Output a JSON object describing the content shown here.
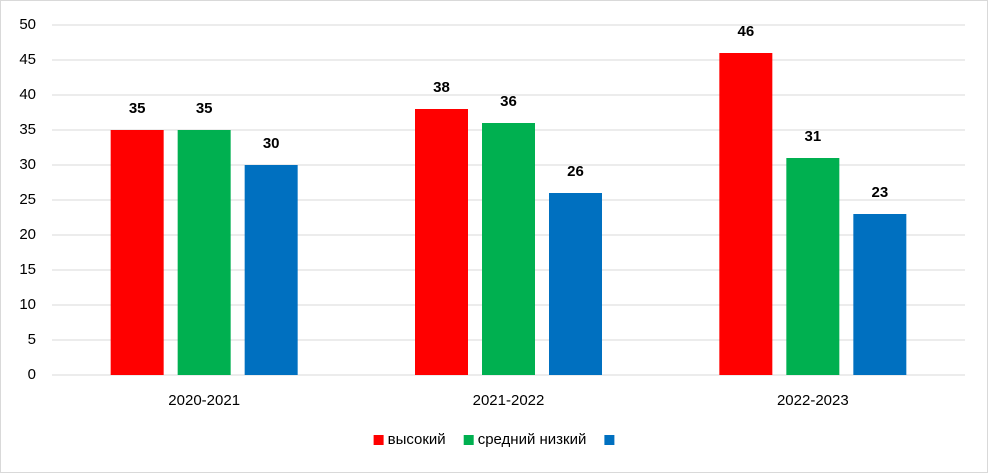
{
  "chart_data": {
    "type": "bar",
    "categories": [
      "2020-2021",
      "2021-2022",
      "2022-2023"
    ],
    "series": [
      {
        "name": "высокий",
        "color": "#ff0000",
        "values": [
          35,
          38,
          46
        ]
      },
      {
        "name": "средний низкий",
        "color": "#00b050",
        "values": [
          35,
          36,
          31
        ]
      },
      {
        "name": null,
        "color": "#0070c0",
        "values": [
          30,
          26,
          23
        ]
      }
    ],
    "ylim": [
      0,
      50
    ],
    "yticks": [
      0,
      5,
      10,
      15,
      20,
      25,
      30,
      35,
      40,
      45,
      50
    ],
    "grid": true,
    "legend": "bottom"
  }
}
